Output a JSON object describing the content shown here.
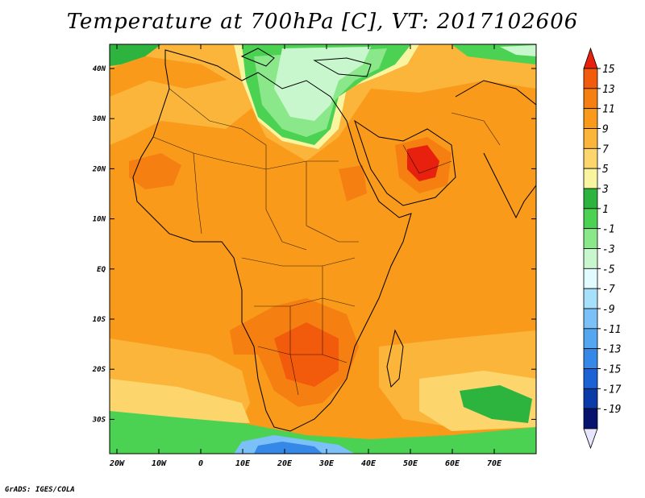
{
  "title": "Temperature at 700hPa [C], VT: 2017102606",
  "credit": "GrADS: IGES/COLA",
  "map": {
    "lat_labels": [
      "40N",
      "30N",
      "20N",
      "10N",
      "EQ",
      "10S",
      "20S",
      "30S"
    ],
    "lon_labels": [
      "20W",
      "10W",
      "0",
      "10E",
      "20E",
      "30E",
      "40E",
      "50E",
      "60E",
      "70E"
    ]
  },
  "colorbar": {
    "labels": [
      "15",
      "13",
      "11",
      "9",
      "7",
      "5",
      "3",
      "1",
      "-1",
      "-3",
      "-5",
      "-7",
      "-9",
      "-11",
      "-13",
      "-15",
      "-17",
      "-19"
    ],
    "colors": [
      "#e8210f",
      "#f25a0c",
      "#f57f11",
      "#f99a1b",
      "#fbb53a",
      "#fcd66d",
      "#f8f4a0",
      "#2db43e",
      "#4cd252",
      "#8ae88a",
      "#c9f7cd",
      "#e1fbfe",
      "#a7e0fb",
      "#7bc0f6",
      "#55a6f1",
      "#3688e8",
      "#1c62d4",
      "#0a3ba8",
      "#08136e",
      "#e8e6ff"
    ]
  }
}
